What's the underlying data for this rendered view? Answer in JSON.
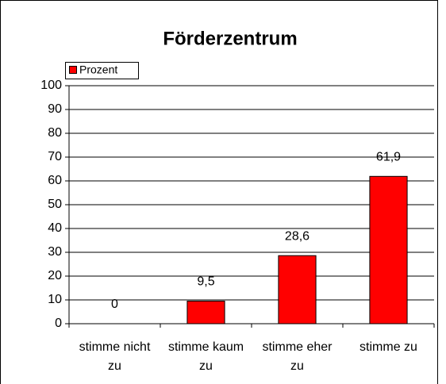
{
  "chart_data": {
    "type": "bar",
    "title": "Förderzentrum",
    "categories": [
      "stimme nicht zu",
      "stimme kaum zu",
      "stimme eher zu",
      "stimme zu"
    ],
    "series": [
      {
        "name": "Prozent",
        "color": "#ff0000",
        "values": [
          0,
          9.5,
          28.6,
          61.9
        ],
        "value_labels": [
          "0",
          "9,5",
          "28,6",
          "61,9"
        ]
      }
    ],
    "ylim": [
      0,
      100
    ],
    "yticks": [
      0,
      10,
      20,
      30,
      40,
      50,
      60,
      70,
      80,
      90,
      100
    ],
    "grid": true,
    "legend": "top-left"
  }
}
